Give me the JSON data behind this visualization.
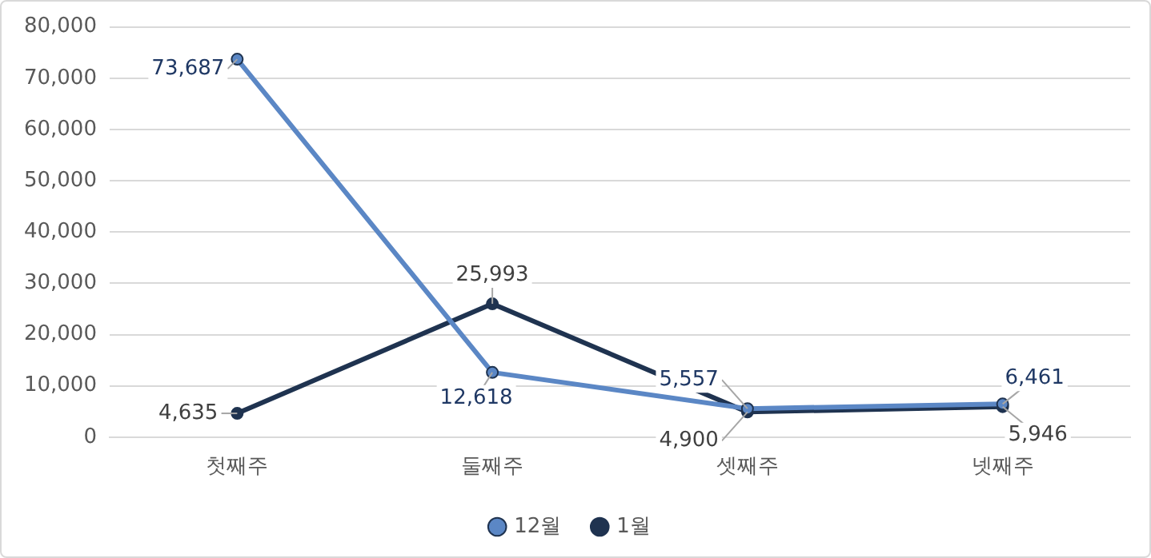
{
  "chart_data": {
    "type": "line",
    "categories": [
      "첫째주",
      "둘째주",
      "셋째주",
      "넷째주"
    ],
    "series": [
      {
        "name": "12월",
        "color": "#5b87c5",
        "values": [
          73687,
          12618,
          5557,
          6461
        ],
        "value_labels": [
          "73,687",
          "12,618",
          "5,557",
          "6,461"
        ]
      },
      {
        "name": "1월",
        "color": "#1f3350",
        "values": [
          4635,
          25993,
          4900,
          5946
        ],
        "value_labels": [
          "4,635",
          "25,993",
          "4,900",
          "5,946"
        ]
      }
    ],
    "ylim": [
      0,
      80000
    ],
    "yticks": [
      {
        "value": 0,
        "label": "0"
      },
      {
        "value": 10000,
        "label": "10,000"
      },
      {
        "value": 20000,
        "label": "20,000"
      },
      {
        "value": 30000,
        "label": "30,000"
      },
      {
        "value": 40000,
        "label": "40,000"
      },
      {
        "value": 50000,
        "label": "50,000"
      },
      {
        "value": 60000,
        "label": "60,000"
      },
      {
        "value": 70000,
        "label": "70,000"
      },
      {
        "value": 80000,
        "label": "80,000"
      }
    ],
    "grid": "y",
    "legend": "bottom",
    "marker": "circle",
    "line_style": "solid"
  }
}
